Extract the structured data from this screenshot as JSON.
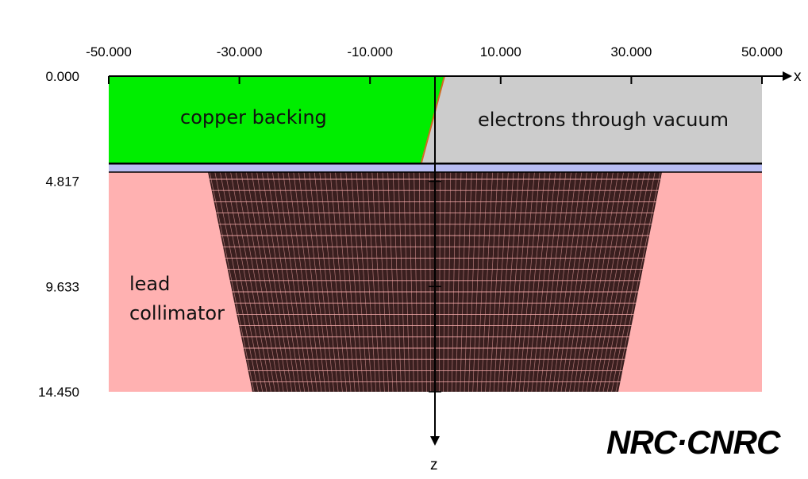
{
  "axes": {
    "x": {
      "name": "x",
      "range": [
        -50,
        50
      ],
      "ticks": [
        "-50.000",
        "-30.000",
        "-10.000",
        "10.000",
        "30.000",
        "50.000"
      ],
      "tick_values": [
        -50,
        -30,
        -10,
        10,
        30,
        50
      ]
    },
    "z": {
      "name": "z",
      "range": [
        0,
        14.45
      ],
      "ticks": [
        "0.000",
        "4.817",
        "9.633",
        "14.450"
      ],
      "tick_values": [
        0,
        4.817,
        9.633,
        14.45
      ]
    }
  },
  "regions": {
    "copper": {
      "label": "copper backing",
      "color": "#00ee00"
    },
    "vacuum": {
      "label": "electrons through vacuum",
      "color": "#cccccc"
    },
    "gap": {
      "color": "#b8bdf2"
    },
    "lead": {
      "label_line1": "lead",
      "label_line2": "collimator",
      "color": "#ffb1b1"
    },
    "mesh": {
      "color": "#3a1f1f",
      "line_color": "#ffb1b1"
    }
  },
  "logo": {
    "text": "NRC·CNRC"
  },
  "colors": {
    "axis": "#000000",
    "background": "#ffffff"
  }
}
